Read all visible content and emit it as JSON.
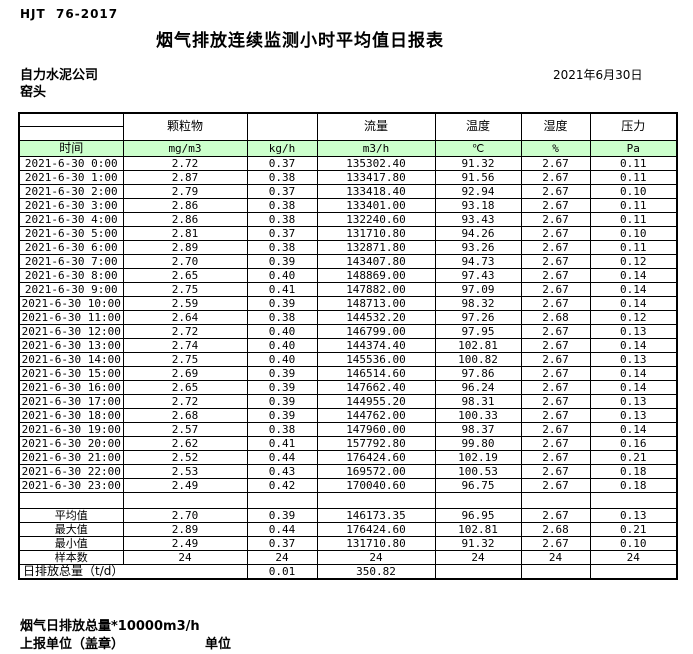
{
  "header": {
    "standard_code": "HJT  76-2017",
    "title": "烟气排放连续监测小时平均值日报表",
    "company": "自力水泥公司",
    "site": "窑头",
    "date": "2021年6月30日"
  },
  "table": {
    "col_groups": [
      "",
      "颗粒物",
      "",
      "流量",
      "温度",
      "湿度",
      "压力"
    ],
    "unit_row": [
      "时间",
      "mg/m3",
      "kg/h",
      "m3/h",
      "℃",
      "%",
      "Pa"
    ],
    "rows": [
      [
        "2021-6-30 0:00",
        "2.72",
        "0.37",
        "135302.40",
        "91.32",
        "2.67",
        "0.11"
      ],
      [
        "2021-6-30 1:00",
        "2.87",
        "0.38",
        "133417.80",
        "91.56",
        "2.67",
        "0.11"
      ],
      [
        "2021-6-30 2:00",
        "2.79",
        "0.37",
        "133418.40",
        "92.94",
        "2.67",
        "0.10"
      ],
      [
        "2021-6-30 3:00",
        "2.86",
        "0.38",
        "133401.00",
        "93.18",
        "2.67",
        "0.11"
      ],
      [
        "2021-6-30 4:00",
        "2.86",
        "0.38",
        "132240.60",
        "93.43",
        "2.67",
        "0.11"
      ],
      [
        "2021-6-30 5:00",
        "2.81",
        "0.37",
        "131710.80",
        "94.26",
        "2.67",
        "0.10"
      ],
      [
        "2021-6-30 6:00",
        "2.89",
        "0.38",
        "132871.80",
        "93.26",
        "2.67",
        "0.11"
      ],
      [
        "2021-6-30 7:00",
        "2.70",
        "0.39",
        "143407.80",
        "94.73",
        "2.67",
        "0.12"
      ],
      [
        "2021-6-30 8:00",
        "2.65",
        "0.40",
        "148869.00",
        "97.43",
        "2.67",
        "0.14"
      ],
      [
        "2021-6-30 9:00",
        "2.75",
        "0.41",
        "147882.00",
        "97.09",
        "2.67",
        "0.14"
      ],
      [
        "2021-6-30 10:00",
        "2.59",
        "0.39",
        "148713.00",
        "98.32",
        "2.67",
        "0.14"
      ],
      [
        "2021-6-30 11:00",
        "2.64",
        "0.38",
        "144532.20",
        "97.26",
        "2.68",
        "0.12"
      ],
      [
        "2021-6-30 12:00",
        "2.72",
        "0.40",
        "146799.00",
        "97.95",
        "2.67",
        "0.13"
      ],
      [
        "2021-6-30 13:00",
        "2.74",
        "0.40",
        "144374.40",
        "102.81",
        "2.67",
        "0.14"
      ],
      [
        "2021-6-30 14:00",
        "2.75",
        "0.40",
        "145536.00",
        "100.82",
        "2.67",
        "0.13"
      ],
      [
        "2021-6-30 15:00",
        "2.69",
        "0.39",
        "146514.60",
        "97.86",
        "2.67",
        "0.14"
      ],
      [
        "2021-6-30 16:00",
        "2.65",
        "0.39",
        "147662.40",
        "96.24",
        "2.67",
        "0.14"
      ],
      [
        "2021-6-30 17:00",
        "2.72",
        "0.39",
        "144955.20",
        "98.31",
        "2.67",
        "0.13"
      ],
      [
        "2021-6-30 18:00",
        "2.68",
        "0.39",
        "144762.00",
        "100.33",
        "2.67",
        "0.13"
      ],
      [
        "2021-6-30 19:00",
        "2.57",
        "0.38",
        "147960.00",
        "98.37",
        "2.67",
        "0.14"
      ],
      [
        "2021-6-30 20:00",
        "2.62",
        "0.41",
        "157792.80",
        "99.80",
        "2.67",
        "0.16"
      ],
      [
        "2021-6-30 21:00",
        "2.52",
        "0.44",
        "176424.60",
        "102.19",
        "2.67",
        "0.21"
      ],
      [
        "2021-6-30 22:00",
        "2.53",
        "0.43",
        "169572.00",
        "100.53",
        "2.67",
        "0.18"
      ],
      [
        "2021-6-30 23:00",
        "2.49",
        "0.42",
        "170040.60",
        "96.75",
        "2.67",
        "0.18"
      ]
    ],
    "summary": [
      [
        "平均值",
        "2.70",
        "0.39",
        "146173.35",
        "96.95",
        "2.67",
        "0.13"
      ],
      [
        "最大值",
        "2.89",
        "0.44",
        "176424.60",
        "102.81",
        "2.68",
        "0.21"
      ],
      [
        "最小值",
        "2.49",
        "0.37",
        "131710.80",
        "91.32",
        "2.67",
        "0.10"
      ],
      [
        "样本数",
        "24",
        "24",
        "24",
        "24",
        "24",
        "24"
      ]
    ],
    "total_row": {
      "label": "日排放总量（t/d）",
      "kg_h": "0.01",
      "flow": "350.82"
    }
  },
  "footer": {
    "note": "烟气日排放总量*10000m3/h",
    "report_unit": "上报单位（盖章）",
    "unit_label": "单位"
  },
  "colors": {
    "unit_row_bg": "#ccffcc",
    "border": "#000000",
    "text": "#000000"
  }
}
